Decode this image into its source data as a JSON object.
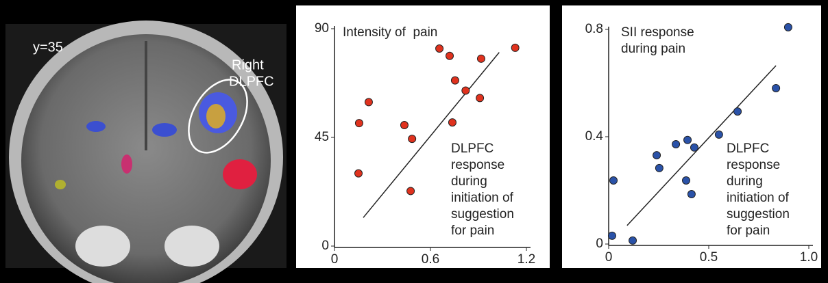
{
  "panel_a": {
    "slice_label": "y=35",
    "region_label_lines": [
      "Right",
      "DLPFC"
    ]
  },
  "chart_data": [
    {
      "type": "scatter",
      "annotation": "Intensity of  pain",
      "annotation_lines": [
        "DLPFC",
        "response",
        "during",
        "initiation of",
        "suggestion",
        "for pain"
      ],
      "x": [
        0.154,
        0.214,
        0.15,
        0.437,
        0.485,
        0.476,
        0.656,
        0.72,
        0.754,
        0.82,
        0.737,
        0.917,
        0.909,
        1.13
      ],
      "y": [
        50.9,
        59.6,
        30.1,
        50.1,
        44.4,
        22.8,
        81.8,
        78.75,
        68.6,
        64.4,
        51.2,
        77.6,
        61.3,
        82.1
      ],
      "color": "#e0321e",
      "trend_line": {
        "x": [
          0.18,
          1.03
        ],
        "y": [
          11.8,
          80.2
        ]
      },
      "xlim": [
        0,
        1.2
      ],
      "ylim": [
        0,
        90
      ],
      "xticks": [
        0,
        0.6,
        1.2
      ],
      "yticks": [
        0,
        45,
        90
      ]
    },
    {
      "type": "scatter",
      "annotation_lines_top": [
        "SII response",
        "during pain"
      ],
      "annotation_lines": [
        "DLPFC",
        "response",
        "during",
        "initiation of",
        "suggestion",
        "for pain"
      ],
      "x": [
        0.024,
        0.017,
        0.12,
        0.24,
        0.253,
        0.336,
        0.394,
        0.428,
        0.387,
        0.414,
        0.551,
        0.644,
        0.836,
        0.897
      ],
      "y": [
        0.237,
        0.031,
        0.013,
        0.331,
        0.283,
        0.372,
        0.388,
        0.36,
        0.237,
        0.186,
        0.408,
        0.494,
        0.581,
        0.808
      ],
      "color": "#2a52a8",
      "trend_line": {
        "x": [
          0.092,
          0.836
        ],
        "y": [
          0.069,
          0.665
        ]
      },
      "xlim": [
        0,
        1.0
      ],
      "ylim": [
        0,
        0.8
      ],
      "xticks": [
        0,
        0.5,
        {
          "value": 1.0,
          "label": "1.0"
        }
      ],
      "yticks": [
        0,
        0.4,
        0.8
      ]
    }
  ]
}
